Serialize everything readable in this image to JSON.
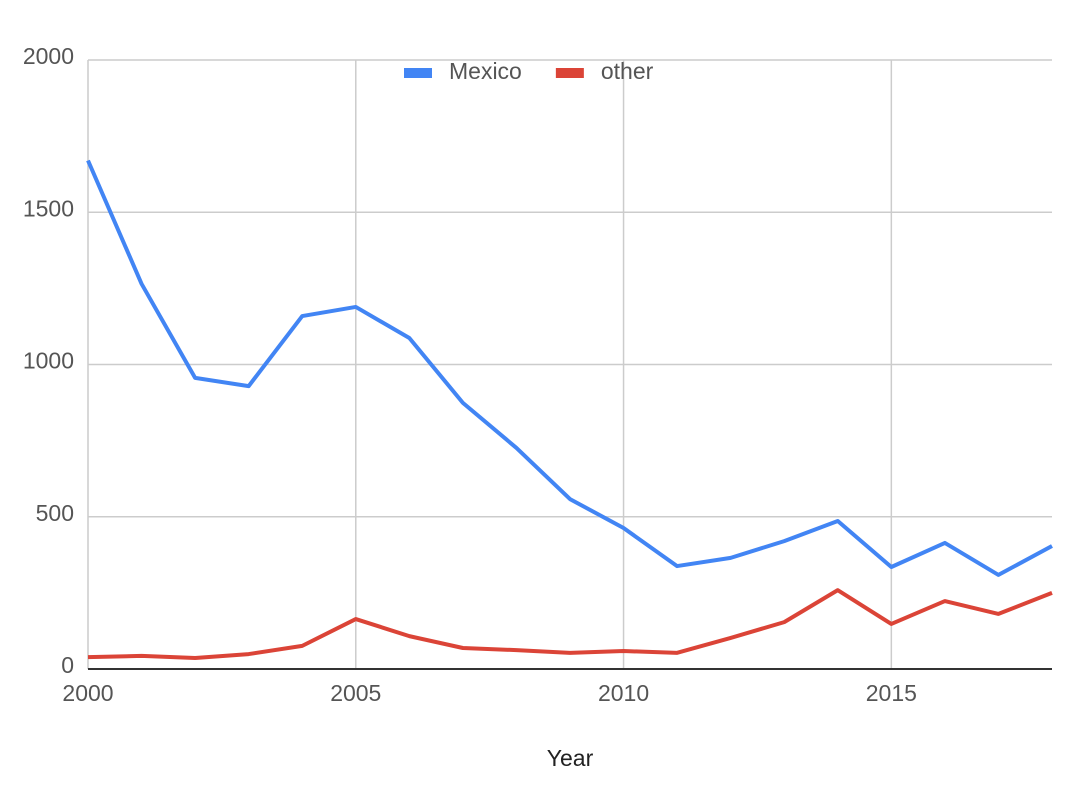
{
  "chart_data": {
    "type": "line",
    "x_label": "Year",
    "x": [
      2000,
      2001,
      2002,
      2003,
      2004,
      2005,
      2006,
      2007,
      2008,
      2009,
      2010,
      2011,
      2012,
      2013,
      2014,
      2015,
      2016,
      2017,
      2018
    ],
    "series": [
      {
        "name": "Mexico",
        "color": "#4285f4",
        "values": [
          1670,
          1265,
          956,
          929,
          1159,
          1189,
          1087,
          874,
          726,
          558,
          463,
          338,
          365,
          420,
          486,
          335,
          414,
          309,
          404
        ]
      },
      {
        "name": "other",
        "color": "#db4437",
        "values": [
          39,
          43,
          36,
          49,
          76,
          164,
          108,
          69,
          62,
          53,
          59,
          53,
          102,
          154,
          259,
          148,
          223,
          181,
          250
        ]
      }
    ],
    "xlim": [
      2000,
      2018
    ],
    "xticks": [
      2000,
      2005,
      2010,
      2015
    ],
    "ylim": [
      0,
      2000
    ],
    "yticks": [
      0,
      500,
      1000,
      1500,
      2000
    ],
    "grid": true,
    "legend": "top"
  }
}
